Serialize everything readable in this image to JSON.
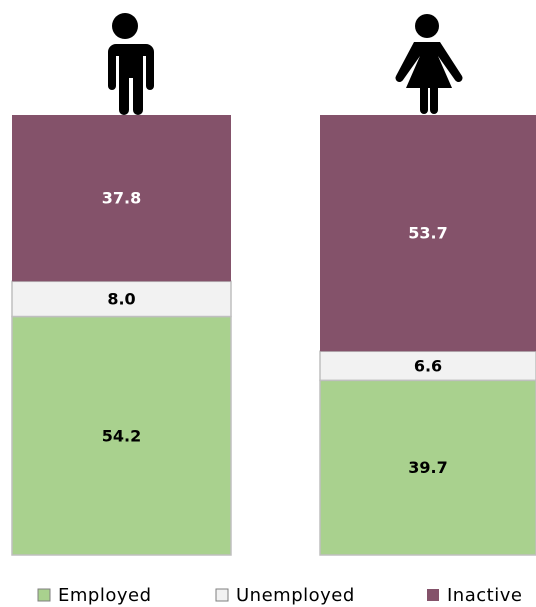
{
  "chart_data": {
    "type": "stacked_bar",
    "categories": [
      null,
      null
    ],
    "series": [
      {
        "name": "Employed",
        "color": "#a9d18e",
        "values": [
          54.2,
          39.7
        ]
      },
      {
        "name": "Unemployed",
        "color": "#f2f2f2",
        "values": [
          8.0,
          6.6
        ],
        "value_labels": [
          "8.0",
          "6.6"
        ]
      },
      {
        "name": "Inactive",
        "color": "#84526a",
        "values": [
          37.8,
          53.7
        ]
      }
    ]
  }
}
